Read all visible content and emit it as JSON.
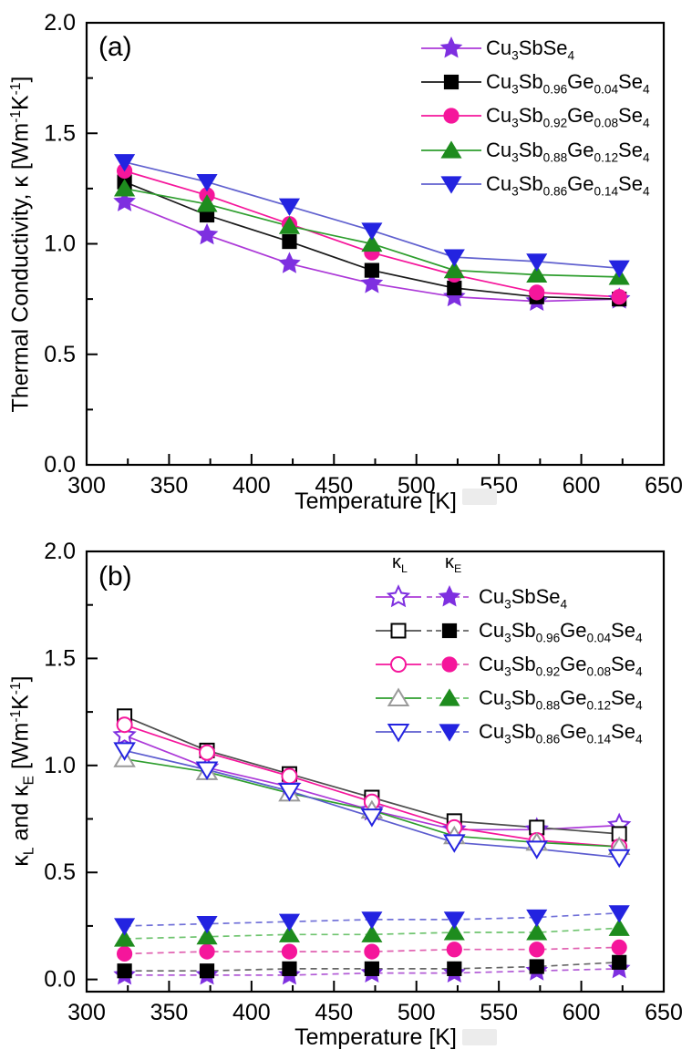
{
  "figure": {
    "background": "#ffffff",
    "frame_color": "#000000",
    "text_color": "#000000"
  },
  "chart_data": [
    {
      "panel_label": "(a)",
      "type": "line",
      "xlabel": "Temperature [K]",
      "ylabel_plain": "Thermal Conductivity, κ [Wm⁻¹K⁻¹]",
      "ylabel_segments": [
        {
          "t": "Thermal Conductivity, κ [Wm"
        },
        {
          "t": "-1",
          "sup": true
        },
        {
          "t": "K"
        },
        {
          "t": "-1",
          "sup": true
        },
        {
          "t": "]"
        }
      ],
      "xlim": [
        300,
        650
      ],
      "ylim": [
        0,
        2.0
      ],
      "x_major_ticks": [
        300,
        350,
        400,
        450,
        500,
        550,
        600,
        650
      ],
      "x_tick_labels": [
        "300",
        "350",
        "400",
        "450",
        "500",
        "550",
        "600",
        "650"
      ],
      "x_minor_step": 25,
      "y_major_ticks": [
        0,
        0.5,
        1.0,
        1.5,
        2.0
      ],
      "y_tick_labels": [
        "0.0",
        "0.5",
        "1.0",
        "1.5",
        "2.0"
      ],
      "y_minor_step": 0.25,
      "grid": false,
      "legend_position": "upper-right-inside",
      "x": [
        323,
        373,
        423,
        473,
        523,
        573,
        623
      ],
      "series": [
        {
          "label_plain": "Cu3SbSe4",
          "marker": "star",
          "formula": [
            {
              "t": "Cu"
            },
            {
              "t": "3",
              "sub": true
            },
            {
              "t": "SbSe"
            },
            {
              "t": "4",
              "sub": true
            }
          ],
          "main": {
            "fill": "filled",
            "marker_color": "#7E2FE0",
            "line_color": "#AC39D8",
            "line_style": "solid",
            "values": [
              1.19,
              1.04,
              0.91,
              0.82,
              0.76,
              0.74,
              0.75
            ]
          }
        },
        {
          "label_plain": "Cu3Sb0.96Ge0.04Se4",
          "marker": "square",
          "formula": [
            {
              "t": "Cu"
            },
            {
              "t": "3",
              "sub": true
            },
            {
              "t": "Sb"
            },
            {
              "t": "0.96",
              "sub": true
            },
            {
              "t": "Ge"
            },
            {
              "t": "0.04",
              "sub": true
            },
            {
              "t": "Se"
            },
            {
              "t": "4",
              "sub": true
            }
          ],
          "main": {
            "fill": "filled",
            "marker_color": "#000000",
            "line_color": "#1A1A1A",
            "line_style": "solid",
            "values": [
              1.28,
              1.13,
              1.01,
              0.88,
              0.8,
              0.76,
              0.75
            ]
          }
        },
        {
          "label_plain": "Cu3Sb0.92Ge0.08Se4",
          "marker": "circle",
          "formula": [
            {
              "t": "Cu"
            },
            {
              "t": "3",
              "sub": true
            },
            {
              "t": "Sb"
            },
            {
              "t": "0.92",
              "sub": true
            },
            {
              "t": "Ge"
            },
            {
              "t": "0.08",
              "sub": true
            },
            {
              "t": "Se"
            },
            {
              "t": "4",
              "sub": true
            }
          ],
          "main": {
            "fill": "filled",
            "marker_color": "#F5169B",
            "line_color": "#F5169B",
            "line_style": "solid",
            "values": [
              1.33,
              1.22,
              1.09,
              0.96,
              0.86,
              0.78,
              0.76
            ]
          }
        },
        {
          "label_plain": "Cu3Sb0.88Ge0.12Se4",
          "marker": "triangle-up",
          "formula": [
            {
              "t": "Cu"
            },
            {
              "t": "3",
              "sub": true
            },
            {
              "t": "Sb"
            },
            {
              "t": "0.88",
              "sub": true
            },
            {
              "t": "Ge"
            },
            {
              "t": "0.12",
              "sub": true
            },
            {
              "t": "Se"
            },
            {
              "t": "4",
              "sub": true
            }
          ],
          "main": {
            "fill": "filled",
            "marker_color": "#1E8C1E",
            "line_color": "#2E9E2E",
            "line_style": "solid",
            "values": [
              1.25,
              1.18,
              1.08,
              1.0,
              0.88,
              0.86,
              0.85
            ]
          }
        },
        {
          "label_plain": "Cu3Sb0.86Ge0.14Se4",
          "marker": "triangle-down",
          "formula": [
            {
              "t": "Cu"
            },
            {
              "t": "3",
              "sub": true
            },
            {
              "t": "Sb"
            },
            {
              "t": "0.86",
              "sub": true
            },
            {
              "t": "Ge"
            },
            {
              "t": "0.14",
              "sub": true
            },
            {
              "t": "Se"
            },
            {
              "t": "4",
              "sub": true
            }
          ],
          "main": {
            "fill": "filled",
            "marker_color": "#2323E0",
            "line_color": "#6161CF",
            "line_style": "solid",
            "values": [
              1.37,
              1.28,
              1.17,
              1.06,
              0.94,
              0.92,
              0.89
            ]
          }
        }
      ]
    },
    {
      "panel_label": "(b)",
      "type": "line",
      "xlabel": "Temperature [K]",
      "ylabel_plain": "κL and κE [Wm⁻¹K⁻¹]",
      "ylabel_segments": [
        {
          "t": "κ"
        },
        {
          "t": "L",
          "sub": true
        },
        {
          "t": " and κ"
        },
        {
          "t": "E",
          "sub": true
        },
        {
          "t": " [Wm"
        },
        {
          "t": "-1",
          "sup": true
        },
        {
          "t": "K"
        },
        {
          "t": "-1",
          "sup": true
        },
        {
          "t": "]"
        }
      ],
      "xlim": [
        300,
        650
      ],
      "ylim": [
        -0.057,
        2.0
      ],
      "x_major_ticks": [
        300,
        350,
        400,
        450,
        500,
        550,
        600,
        650
      ],
      "x_tick_labels": [
        "300",
        "350",
        "400",
        "450",
        "500",
        "550",
        "600",
        "650"
      ],
      "x_minor_step": 25,
      "y_major_ticks": [
        0,
        0.5,
        1.0,
        1.5,
        2.0
      ],
      "y_tick_labels": [
        "0.0",
        "0.5",
        "1.0",
        "1.5",
        "2.0"
      ],
      "y_minor_step": 0.25,
      "grid": false,
      "legend_position": "upper-right-inside",
      "legend_headers": {
        "kL_plain": "κL",
        "kL_segments": [
          {
            "t": "κ"
          },
          {
            "t": "L",
            "sub": true
          }
        ],
        "kE_plain": "κE",
        "kE_segments": [
          {
            "t": "κ"
          },
          {
            "t": "E",
            "sub": true
          }
        ]
      },
      "x": [
        323,
        373,
        423,
        473,
        523,
        573,
        623
      ],
      "series": [
        {
          "label_plain": "Cu3SbSe4",
          "marker": "star",
          "formula": [
            {
              "t": "Cu"
            },
            {
              "t": "3",
              "sub": true
            },
            {
              "t": "SbSe"
            },
            {
              "t": "4",
              "sub": true
            }
          ],
          "kL": {
            "fill": "open",
            "marker_color": "#7E2FE0",
            "line_color": "#AC39D8",
            "line_style": "solid",
            "values": [
              1.14,
              0.99,
              0.9,
              0.79,
              0.7,
              0.7,
              0.72
            ]
          },
          "kE": {
            "fill": "filled",
            "marker_color": "#7E2FE0",
            "line_color": "#B25BD6",
            "line_style": "dashed",
            "values": [
              0.02,
              0.02,
              0.02,
              0.03,
              0.03,
              0.04,
              0.05
            ]
          }
        },
        {
          "label_plain": "Cu3Sb0.96Ge0.04Se4",
          "marker": "square",
          "formula": [
            {
              "t": "Cu"
            },
            {
              "t": "3",
              "sub": true
            },
            {
              "t": "Sb"
            },
            {
              "t": "0.96",
              "sub": true
            },
            {
              "t": "Ge"
            },
            {
              "t": "0.04",
              "sub": true
            },
            {
              "t": "Se"
            },
            {
              "t": "4",
              "sub": true
            }
          ],
          "kL": {
            "fill": "open",
            "marker_color": "#000000",
            "line_color": "#4D4D4D",
            "line_style": "solid",
            "values": [
              1.23,
              1.07,
              0.96,
              0.85,
              0.74,
              0.71,
              0.68
            ]
          },
          "kE": {
            "fill": "filled",
            "marker_color": "#000000",
            "line_color": "#666666",
            "line_style": "dashed",
            "values": [
              0.04,
              0.04,
              0.05,
              0.05,
              0.05,
              0.06,
              0.08
            ]
          }
        },
        {
          "label_plain": "Cu3Sb0.92Ge0.08Se4",
          "marker": "circle",
          "formula": [
            {
              "t": "Cu"
            },
            {
              "t": "3",
              "sub": true
            },
            {
              "t": "Sb"
            },
            {
              "t": "0.92",
              "sub": true
            },
            {
              "t": "Ge"
            },
            {
              "t": "0.08",
              "sub": true
            },
            {
              "t": "Se"
            },
            {
              "t": "4",
              "sub": true
            }
          ],
          "kL": {
            "fill": "open",
            "marker_color": "#F5169B",
            "line_color": "#F5169B",
            "line_style": "solid",
            "values": [
              1.19,
              1.06,
              0.95,
              0.83,
              0.71,
              0.65,
              0.62
            ]
          },
          "kE": {
            "fill": "filled",
            "marker_color": "#F5169B",
            "line_color": "#E060B0",
            "line_style": "dashed",
            "values": [
              0.12,
              0.13,
              0.13,
              0.13,
              0.14,
              0.14,
              0.15
            ]
          }
        },
        {
          "label_plain": "Cu3Sb0.88Ge0.12Se4",
          "marker": "triangle-up",
          "formula": [
            {
              "t": "Cu"
            },
            {
              "t": "3",
              "sub": true
            },
            {
              "t": "Sb"
            },
            {
              "t": "0.88",
              "sub": true
            },
            {
              "t": "Ge"
            },
            {
              "t": "0.12",
              "sub": true
            },
            {
              "t": "Se"
            },
            {
              "t": "4",
              "sub": true
            }
          ],
          "kL": {
            "fill": "open",
            "marker_color": "#9A9A9A",
            "line_color": "#2E9E2E",
            "line_style": "solid",
            "values": [
              1.03,
              0.97,
              0.87,
              0.79,
              0.67,
              0.64,
              0.62
            ]
          },
          "kE": {
            "fill": "filled",
            "marker_color": "#1E8C1E",
            "line_color": "#6FC46F",
            "line_style": "dashed",
            "values": [
              0.19,
              0.2,
              0.21,
              0.21,
              0.22,
              0.22,
              0.24
            ]
          }
        },
        {
          "label_plain": "Cu3Sb0.86Ge0.14Se4",
          "marker": "triangle-down",
          "formula": [
            {
              "t": "Cu"
            },
            {
              "t": "3",
              "sub": true
            },
            {
              "t": "Sb"
            },
            {
              "t": "0.86",
              "sub": true
            },
            {
              "t": "Ge"
            },
            {
              "t": "0.14",
              "sub": true
            },
            {
              "t": "Se"
            },
            {
              "t": "4",
              "sub": true
            }
          ],
          "kL": {
            "fill": "open",
            "marker_color": "#2323E0",
            "line_color": "#5C5CCF",
            "line_style": "solid",
            "values": [
              1.07,
              0.98,
              0.88,
              0.76,
              0.64,
              0.61,
              0.57
            ]
          },
          "kE": {
            "fill": "filled",
            "marker_color": "#2323E0",
            "line_color": "#7070D8",
            "line_style": "dashed",
            "values": [
              0.25,
              0.26,
              0.27,
              0.28,
              0.28,
              0.29,
              0.31
            ]
          }
        }
      ]
    }
  ]
}
